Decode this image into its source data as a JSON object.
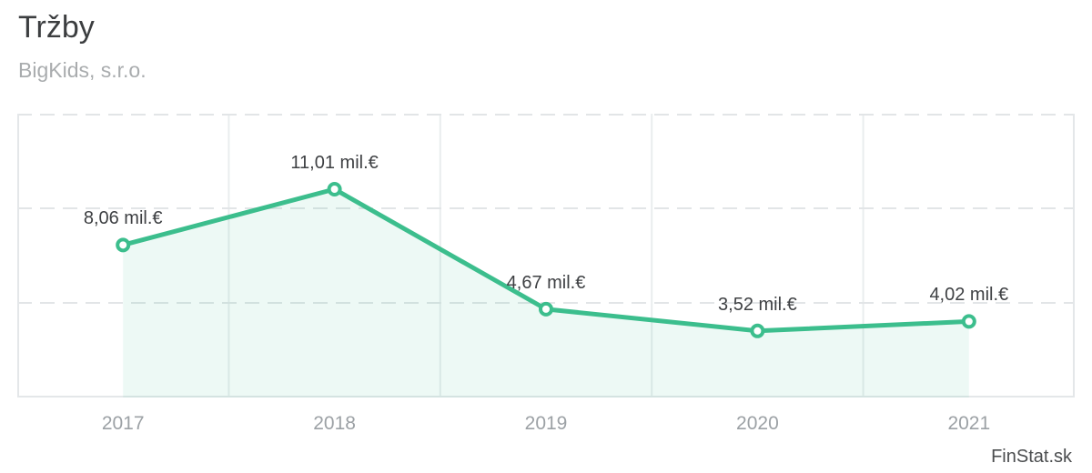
{
  "header": {
    "title": "Tržby",
    "subtitle": "BigKids, s.r.o."
  },
  "watermark": "FinStat.sk",
  "colors": {
    "line": "#3cbe8d",
    "marker_fill": "#ffffff",
    "area_fill": "rgba(60, 190, 141, 0.09)",
    "grid_dashed": "#e2e5e7",
    "grid_vertical": "#e9edee",
    "border": "#e4e7e9",
    "title_text": "#3c3e40",
    "subtitle_text": "#a9acae",
    "label_text": "#3e4043",
    "tick_text": "#9ca1a5"
  },
  "chart_data": {
    "type": "area",
    "title": "Tržby",
    "subtitle": "BigKids, s.r.o.",
    "categories": [
      "2017",
      "2018",
      "2019",
      "2020",
      "2021"
    ],
    "values": [
      8.06,
      11.01,
      4.67,
      3.52,
      4.02
    ],
    "point_labels": [
      "8,06 mil.€",
      "11,01 mil.€",
      "4,67 mil.€",
      "3,52 mil.€",
      "4,02 mil.€"
    ],
    "unit": "mil.€",
    "xlabel": "",
    "ylabel": "",
    "ylim": [
      0,
      15
    ],
    "y_gridlines": [
      0,
      5,
      10,
      15
    ],
    "grid": true,
    "legend": "none"
  }
}
